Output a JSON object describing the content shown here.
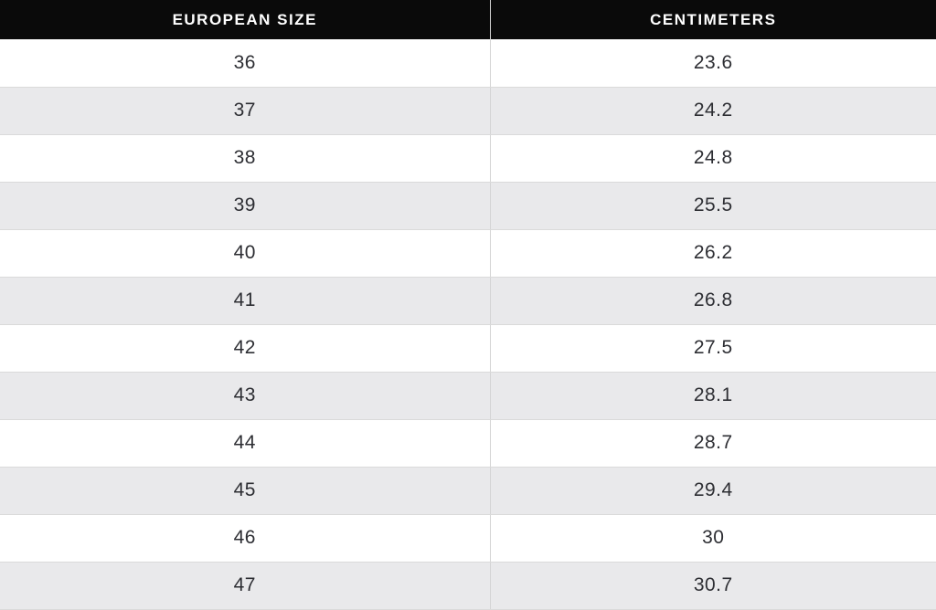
{
  "table": {
    "title": "european-size-to-centimeters-conversion",
    "columns": [
      {
        "label": "EUROPEAN SIZE"
      },
      {
        "label": "CENTIMETERS"
      }
    ],
    "rows": [
      {
        "eu": "36",
        "cm": "23.6"
      },
      {
        "eu": "37",
        "cm": "24.2"
      },
      {
        "eu": "38",
        "cm": "24.8"
      },
      {
        "eu": "39",
        "cm": "25.5"
      },
      {
        "eu": "40",
        "cm": "26.2"
      },
      {
        "eu": "41",
        "cm": "26.8"
      },
      {
        "eu": "42",
        "cm": "27.5"
      },
      {
        "eu": "43",
        "cm": "28.1"
      },
      {
        "eu": "44",
        "cm": "28.7"
      },
      {
        "eu": "45",
        "cm": "29.4"
      },
      {
        "eu": "46",
        "cm": "30"
      },
      {
        "eu": "47",
        "cm": "30.7"
      }
    ]
  },
  "colors": {
    "header_bg": "#0a0a0a",
    "header_text": "#ffffff",
    "row_bg": "#ffffff",
    "row_alt_bg": "#e9e9eb",
    "border": "#dadada",
    "divider": "#d4d4d4",
    "cell_text": "#2d2e33"
  }
}
